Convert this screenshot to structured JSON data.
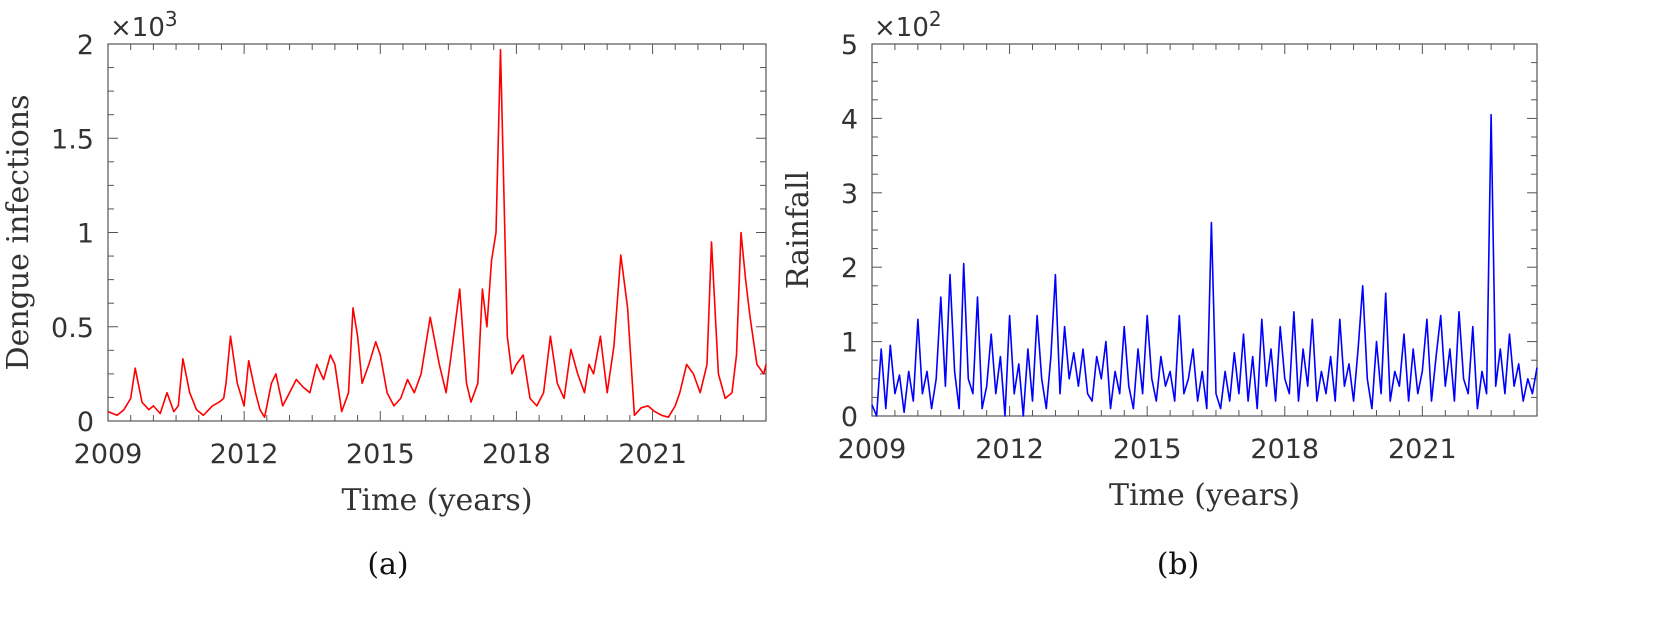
{
  "chart_data": [
    {
      "type": "line",
      "panel_label": "(a)",
      "xlabel": "Time (years)",
      "ylabel": "Dengue infections",
      "y_exponent_label": "×10",
      "y_exponent_power": "3",
      "xlim": [
        2009,
        2023.5
      ],
      "ylim": [
        0,
        2
      ],
      "xticks": [
        2009,
        2012,
        2015,
        2018,
        2021
      ],
      "xtick_labels": [
        "2009",
        "2012",
        "2015",
        "2018",
        "2021"
      ],
      "yticks": [
        0,
        0.5,
        1,
        1.5,
        2
      ],
      "ytick_labels": [
        "0",
        "0.5",
        "1",
        "1.5",
        "2"
      ],
      "color": "#ff0000",
      "series": [
        {
          "x": [
            2009.0,
            2009.2,
            2009.35,
            2009.5,
            2009.6,
            2009.75,
            2009.9,
            2010.0,
            2010.15,
            2010.3,
            2010.45,
            2010.55,
            2010.65,
            2010.8,
            2010.95,
            2011.1,
            2011.3,
            2011.45,
            2011.55,
            2011.6,
            2011.7,
            2011.85,
            2012.0,
            2012.1,
            2012.25,
            2012.35,
            2012.45,
            2012.6,
            2012.7,
            2012.85,
            2013.0,
            2013.15,
            2013.3,
            2013.45,
            2013.6,
            2013.75,
            2013.9,
            2014.0,
            2014.15,
            2014.3,
            2014.4,
            2014.5,
            2014.6,
            2014.75,
            2014.9,
            2015.0,
            2015.15,
            2015.3,
            2015.45,
            2015.6,
            2015.75,
            2015.9,
            2016.1,
            2016.3,
            2016.45,
            2016.6,
            2016.75,
            2016.9,
            2017.0,
            2017.15,
            2017.25,
            2017.35,
            2017.45,
            2017.55,
            2017.65,
            2017.8,
            2017.9,
            2018.0,
            2018.15,
            2018.3,
            2018.45,
            2018.6,
            2018.75,
            2018.9,
            2019.05,
            2019.2,
            2019.35,
            2019.5,
            2019.6,
            2019.7,
            2019.85,
            2020.0,
            2020.15,
            2020.3,
            2020.45,
            2020.6,
            2020.75,
            2020.9,
            2021.05,
            2021.2,
            2021.35,
            2021.5,
            2021.6,
            2021.75,
            2021.9,
            2022.05,
            2022.2,
            2022.3,
            2022.45,
            2022.6,
            2022.75,
            2022.85,
            2022.95,
            2023.05,
            2023.15,
            2023.3,
            2023.45,
            2023.5
          ],
          "y": [
            0.05,
            0.03,
            0.06,
            0.12,
            0.28,
            0.1,
            0.06,
            0.08,
            0.04,
            0.15,
            0.05,
            0.08,
            0.33,
            0.15,
            0.06,
            0.03,
            0.08,
            0.1,
            0.12,
            0.2,
            0.45,
            0.2,
            0.08,
            0.32,
            0.15,
            0.06,
            0.02,
            0.2,
            0.25,
            0.08,
            0.15,
            0.22,
            0.18,
            0.15,
            0.3,
            0.22,
            0.35,
            0.3,
            0.05,
            0.15,
            0.6,
            0.45,
            0.2,
            0.3,
            0.42,
            0.35,
            0.15,
            0.08,
            0.12,
            0.22,
            0.15,
            0.25,
            0.55,
            0.3,
            0.15,
            0.42,
            0.7,
            0.2,
            0.1,
            0.2,
            0.7,
            0.5,
            0.85,
            1.0,
            1.97,
            0.45,
            0.25,
            0.3,
            0.35,
            0.12,
            0.08,
            0.15,
            0.45,
            0.2,
            0.12,
            0.38,
            0.25,
            0.15,
            0.3,
            0.25,
            0.45,
            0.15,
            0.4,
            0.88,
            0.6,
            0.03,
            0.07,
            0.08,
            0.05,
            0.03,
            0.02,
            0.08,
            0.15,
            0.3,
            0.25,
            0.15,
            0.3,
            0.95,
            0.25,
            0.12,
            0.15,
            0.35,
            1.0,
            0.75,
            0.55,
            0.3,
            0.25,
            0.3
          ]
        }
      ]
    },
    {
      "type": "line",
      "panel_label": "(b)",
      "xlabel": "Time (years)",
      "ylabel": "Rainfall",
      "y_exponent_label": "×10",
      "y_exponent_power": "2",
      "xlim": [
        2009,
        2023.5
      ],
      "ylim": [
        0,
        5
      ],
      "xticks": [
        2009,
        2012,
        2015,
        2018,
        2021
      ],
      "xtick_labels": [
        "2009",
        "2012",
        "2015",
        "2018",
        "2021"
      ],
      "yticks": [
        0,
        1,
        2,
        3,
        4,
        5
      ],
      "ytick_labels": [
        "0",
        "1",
        "2",
        "3",
        "4",
        "5"
      ],
      "color": "#0000ff",
      "series": [
        {
          "x": [
            2009.0,
            2009.1,
            2009.2,
            2009.3,
            2009.4,
            2009.5,
            2009.6,
            2009.7,
            2009.8,
            2009.9,
            2010.0,
            2010.1,
            2010.2,
            2010.3,
            2010.4,
            2010.5,
            2010.6,
            2010.7,
            2010.8,
            2010.9,
            2011.0,
            2011.1,
            2011.2,
            2011.3,
            2011.4,
            2011.5,
            2011.6,
            2011.7,
            2011.8,
            2011.9,
            2012.0,
            2012.1,
            2012.2,
            2012.3,
            2012.4,
            2012.5,
            2012.6,
            2012.7,
            2012.8,
            2012.9,
            2013.0,
            2013.1,
            2013.2,
            2013.3,
            2013.4,
            2013.5,
            2013.6,
            2013.7,
            2013.8,
            2013.9,
            2014.0,
            2014.1,
            2014.2,
            2014.3,
            2014.4,
            2014.5,
            2014.6,
            2014.7,
            2014.8,
            2014.9,
            2015.0,
            2015.1,
            2015.2,
            2015.3,
            2015.4,
            2015.5,
            2015.6,
            2015.7,
            2015.8,
            2015.9,
            2016.0,
            2016.1,
            2016.2,
            2016.3,
            2016.4,
            2016.5,
            2016.6,
            2016.7,
            2016.8,
            2016.9,
            2017.0,
            2017.1,
            2017.2,
            2017.3,
            2017.4,
            2017.5,
            2017.6,
            2017.7,
            2017.8,
            2017.9,
            2018.0,
            2018.1,
            2018.2,
            2018.3,
            2018.4,
            2018.5,
            2018.6,
            2018.7,
            2018.8,
            2018.9,
            2019.0,
            2019.1,
            2019.2,
            2019.3,
            2019.4,
            2019.5,
            2019.6,
            2019.7,
            2019.8,
            2019.9,
            2020.0,
            2020.1,
            2020.2,
            2020.3,
            2020.4,
            2020.5,
            2020.6,
            2020.7,
            2020.8,
            2020.9,
            2021.0,
            2021.1,
            2021.2,
            2021.3,
            2021.4,
            2021.5,
            2021.6,
            2021.7,
            2021.8,
            2021.9,
            2022.0,
            2022.1,
            2022.2,
            2022.3,
            2022.4,
            2022.5,
            2022.6,
            2022.7,
            2022.8,
            2022.9,
            2023.0,
            2023.1,
            2023.2,
            2023.3,
            2023.4,
            2023.5
          ],
          "y": [
            0.15,
            0.0,
            0.9,
            0.1,
            0.95,
            0.3,
            0.55,
            0.05,
            0.6,
            0.2,
            1.3,
            0.3,
            0.6,
            0.1,
            0.5,
            1.6,
            0.4,
            1.9,
            0.6,
            0.1,
            2.05,
            0.5,
            0.3,
            1.6,
            0.1,
            0.4,
            1.1,
            0.3,
            0.8,
            0.0,
            1.35,
            0.3,
            0.7,
            0.0,
            0.9,
            0.2,
            1.35,
            0.5,
            0.1,
            0.8,
            1.9,
            0.3,
            1.2,
            0.5,
            0.85,
            0.4,
            0.9,
            0.3,
            0.2,
            0.8,
            0.5,
            1.0,
            0.1,
            0.6,
            0.3,
            1.2,
            0.4,
            0.1,
            0.9,
            0.3,
            1.35,
            0.5,
            0.2,
            0.8,
            0.4,
            0.6,
            0.2,
            1.35,
            0.3,
            0.5,
            0.9,
            0.2,
            0.6,
            0.1,
            2.6,
            0.3,
            0.1,
            0.6,
            0.2,
            0.85,
            0.3,
            1.1,
            0.2,
            0.8,
            0.1,
            1.3,
            0.4,
            0.9,
            0.2,
            1.2,
            0.5,
            0.3,
            1.4,
            0.2,
            0.9,
            0.4,
            1.3,
            0.2,
            0.6,
            0.3,
            0.8,
            0.2,
            1.3,
            0.4,
            0.7,
            0.2,
            0.9,
            1.75,
            0.5,
            0.1,
            1.0,
            0.3,
            1.65,
            0.2,
            0.6,
            0.4,
            1.1,
            0.2,
            0.9,
            0.3,
            0.6,
            1.3,
            0.2,
            0.8,
            1.35,
            0.4,
            0.9,
            0.2,
            1.4,
            0.5,
            0.3,
            1.2,
            0.1,
            0.6,
            0.3,
            4.05,
            0.4,
            0.9,
            0.3,
            1.1,
            0.4,
            0.7,
            0.2,
            0.5,
            0.3,
            0.65
          ]
        }
      ]
    }
  ]
}
